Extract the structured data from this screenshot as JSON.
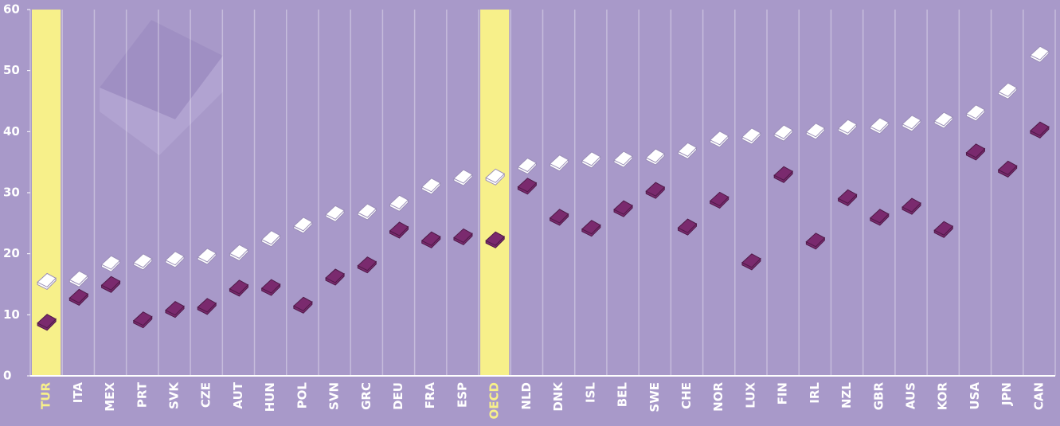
{
  "chart_data": {
    "type": "dot",
    "categories": [
      "TUR",
      "ITA",
      "MEX",
      "PRT",
      "SVK",
      "CZE",
      "AUT",
      "HUN",
      "POL",
      "SVN",
      "GRC",
      "DEU",
      "FRA",
      "ESP",
      "OECD",
      "NLD",
      "DNK",
      "ISL",
      "BEL",
      "SWE",
      "CHE",
      "NOR",
      "LUX",
      "FIN",
      "IRL",
      "NZL",
      "GBR",
      "AUS",
      "KOR",
      "USA",
      "JPN",
      "CAN"
    ],
    "series": [
      {
        "color": "#ffffff",
        "values": [
          15.6,
          16,
          18.5,
          18.8,
          19.2,
          19.7,
          20.3,
          22.6,
          24.8,
          26.7,
          27,
          28.4,
          31.2,
          32.6,
          32.7,
          34.5,
          35,
          35.5,
          35.6,
          36,
          37,
          38.9,
          39.4,
          39.9,
          40.2,
          40.8,
          41.1,
          41.5,
          42,
          43.2,
          46.8,
          52.8
        ]
      },
      {
        "color": "#7a2a6e",
        "values": [
          8.9,
          13,
          15.1,
          9.3,
          11,
          11.5,
          14.5,
          14.6,
          11.7,
          16.3,
          18.3,
          24,
          22.4,
          22.9,
          22.4,
          31.2,
          26.1,
          24.3,
          27.5,
          30.5,
          24.5,
          28.9,
          18.8,
          33.1,
          22.2,
          29.3,
          26.1,
          27.9,
          24.1,
          36.8,
          34,
          40.4
        ]
      }
    ],
    "highlight": [
      0,
      14
    ],
    "highlight_color": "#f7f08a",
    "ylim": [
      0,
      60
    ],
    "yticks": [
      0,
      10,
      20,
      30,
      40,
      50,
      60
    ],
    "grid": true
  }
}
